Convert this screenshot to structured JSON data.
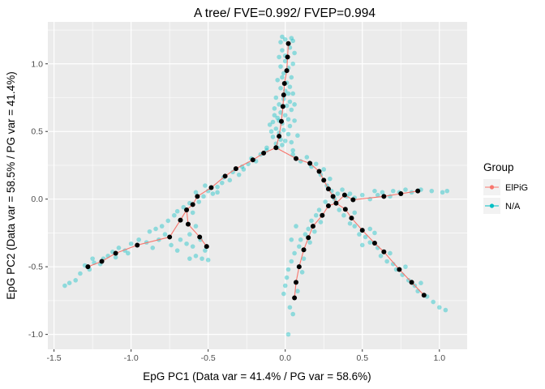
{
  "chart_data": {
    "type": "scatter",
    "title": "A tree/ FVE=0.992/ FVEP=0.994",
    "xlabel": "EpG PC1 (Data var = 41.4% / PG var = 58.6%)",
    "ylabel": "EpG PC2 (Data var = 58.5% / PG var = 41.4%)",
    "xlim": [
      -1.54,
      1.18
    ],
    "ylim": [
      -1.11,
      1.31
    ],
    "x_ticks": [
      -1.5,
      -1.0,
      -0.5,
      0.0,
      0.5,
      1.0
    ],
    "x_tick_labels": [
      "-1.5",
      "-1.0",
      "-0.5",
      "0.0",
      "0.5",
      "1.0"
    ],
    "y_ticks": [
      -1.0,
      -0.5,
      0.0,
      0.5,
      1.0
    ],
    "y_tick_labels": [
      "-1.0",
      "-0.5",
      "0.0",
      "0.5",
      "1.0"
    ],
    "grid": true,
    "legend": {
      "title": "Group",
      "position": "right",
      "entries": [
        {
          "label": "ElPiG",
          "color": "#F8766D"
        },
        {
          "label": "N/A",
          "color": "#00BFC4"
        }
      ]
    },
    "colors": {
      "panel": "#EBEBEB",
      "grid": "#FFFFFF",
      "points": "#00BFC4",
      "nodes": "#000000",
      "edges": "#F8766D"
    },
    "nodes": [
      [
        0.02,
        1.15
      ],
      [
        0.015,
        1.05
      ],
      [
        0.01,
        0.95
      ],
      [
        -0.005,
        0.855
      ],
      [
        -0.01,
        0.77
      ],
      [
        -0.015,
        0.685
      ],
      [
        -0.025,
        0.575
      ],
      [
        -0.04,
        0.465
      ],
      [
        -0.06,
        0.38
      ],
      [
        -0.14,
        0.34
      ],
      [
        -0.21,
        0.29
      ],
      [
        -0.32,
        0.225
      ],
      [
        -0.39,
        0.17
      ],
      [
        -0.48,
        0.085
      ],
      [
        -0.57,
        0.02
      ],
      [
        -0.6,
        -0.04
      ],
      [
        -0.64,
        -0.08
      ],
      [
        -0.68,
        -0.155
      ],
      [
        -0.75,
        -0.28
      ],
      [
        -0.96,
        -0.34
      ],
      [
        -1.1,
        -0.4
      ],
      [
        -1.19,
        -0.46
      ],
      [
        -1.28,
        -0.5
      ],
      [
        -0.63,
        -0.185
      ],
      [
        -0.555,
        -0.28
      ],
      [
        -0.51,
        -0.35
      ],
      [
        0.07,
        0.3
      ],
      [
        0.16,
        0.265
      ],
      [
        0.22,
        0.205
      ],
      [
        0.25,
        0.14
      ],
      [
        0.28,
        0.075
      ],
      [
        0.31,
        0.02
      ],
      [
        0.33,
        -0.03
      ],
      [
        0.385,
        0.03
      ],
      [
        0.44,
        -0.005
      ],
      [
        0.64,
        0.02
      ],
      [
        0.75,
        0.04
      ],
      [
        0.86,
        0.06
      ],
      [
        0.28,
        -0.05
      ],
      [
        0.24,
        -0.12
      ],
      [
        0.18,
        -0.2
      ],
      [
        0.15,
        -0.285
      ],
      [
        0.12,
        -0.375
      ],
      [
        0.09,
        -0.5
      ],
      [
        0.07,
        -0.615
      ],
      [
        0.06,
        -0.73
      ],
      [
        0.39,
        -0.075
      ],
      [
        0.43,
        -0.14
      ],
      [
        0.5,
        -0.23
      ],
      [
        0.58,
        -0.325
      ],
      [
        0.64,
        -0.39
      ],
      [
        0.74,
        -0.52
      ],
      [
        0.82,
        -0.615
      ],
      [
        0.9,
        -0.71
      ]
    ],
    "edges": [
      [
        0,
        1
      ],
      [
        1,
        2
      ],
      [
        2,
        3
      ],
      [
        3,
        4
      ],
      [
        4,
        5
      ],
      [
        5,
        6
      ],
      [
        6,
        7
      ],
      [
        7,
        8
      ],
      [
        8,
        9
      ],
      [
        9,
        10
      ],
      [
        10,
        11
      ],
      [
        11,
        12
      ],
      [
        12,
        13
      ],
      [
        13,
        14
      ],
      [
        14,
        15
      ],
      [
        15,
        16
      ],
      [
        16,
        17
      ],
      [
        17,
        18
      ],
      [
        18,
        19
      ],
      [
        19,
        20
      ],
      [
        20,
        21
      ],
      [
        21,
        22
      ],
      [
        16,
        23
      ],
      [
        23,
        24
      ],
      [
        24,
        25
      ],
      [
        8,
        26
      ],
      [
        26,
        27
      ],
      [
        27,
        28
      ],
      [
        28,
        29
      ],
      [
        29,
        30
      ],
      [
        30,
        31
      ],
      [
        31,
        32
      ],
      [
        32,
        33
      ],
      [
        33,
        34
      ],
      [
        34,
        35
      ],
      [
        35,
        36
      ],
      [
        36,
        37
      ],
      [
        32,
        38
      ],
      [
        38,
        39
      ],
      [
        39,
        40
      ],
      [
        40,
        41
      ],
      [
        41,
        42
      ],
      [
        42,
        43
      ],
      [
        43,
        44
      ],
      [
        44,
        45
      ],
      [
        32,
        46
      ],
      [
        46,
        47
      ],
      [
        47,
        48
      ],
      [
        48,
        49
      ],
      [
        49,
        50
      ],
      [
        50,
        51
      ],
      [
        51,
        52
      ],
      [
        52,
        53
      ]
    ],
    "points": [
      [
        -0.02,
        1.2
      ],
      [
        0.04,
        1.19
      ],
      [
        0.0,
        1.18
      ],
      [
        -0.03,
        1.16
      ],
      [
        0.05,
        1.17
      ],
      [
        0.03,
        1.12
      ],
      [
        -0.02,
        1.1
      ],
      [
        0.06,
        1.08
      ],
      [
        -0.04,
        1.05
      ],
      [
        0.0,
        1.02
      ],
      [
        0.05,
        1.0
      ],
      [
        -0.03,
        0.98
      ],
      [
        0.02,
        0.97
      ],
      [
        -0.01,
        0.93
      ],
      [
        0.04,
        0.9
      ],
      [
        -0.05,
        0.88
      ],
      [
        0.01,
        0.86
      ],
      [
        0.03,
        0.83
      ],
      [
        -0.03,
        0.82
      ],
      [
        0.0,
        0.8
      ],
      [
        0.05,
        0.78
      ],
      [
        -0.06,
        0.75
      ],
      [
        -0.01,
        0.74
      ],
      [
        0.03,
        0.72
      ],
      [
        -0.04,
        0.7
      ],
      [
        0.01,
        0.69
      ],
      [
        -0.07,
        0.67
      ],
      [
        0.04,
        0.66
      ],
      [
        -0.03,
        0.64
      ],
      [
        0.0,
        0.62
      ],
      [
        -0.05,
        0.6
      ],
      [
        0.02,
        0.59
      ],
      [
        -0.08,
        0.57
      ],
      [
        -0.02,
        0.56
      ],
      [
        0.03,
        0.54
      ],
      [
        -0.06,
        0.52
      ],
      [
        -0.01,
        0.51
      ],
      [
        -0.04,
        0.49
      ],
      [
        0.02,
        0.48
      ],
      [
        -0.08,
        0.46
      ],
      [
        -0.03,
        0.44
      ],
      [
        0.0,
        0.43
      ],
      [
        -0.06,
        0.41
      ],
      [
        -0.02,
        0.4
      ],
      [
        0.04,
        0.42
      ],
      [
        -0.09,
        0.5
      ],
      [
        0.06,
        0.58
      ],
      [
        -0.07,
        0.62
      ],
      [
        0.06,
        0.7
      ],
      [
        -0.1,
        0.55
      ],
      [
        0.08,
        0.47
      ],
      [
        -0.05,
        0.38
      ],
      [
        0.05,
        0.36
      ],
      [
        -0.12,
        0.36
      ],
      [
        0.0,
        1.06
      ],
      [
        -0.02,
        0.9
      ],
      [
        0.02,
        0.78
      ],
      [
        -0.04,
        0.58
      ],
      [
        -0.12,
        0.38
      ],
      [
        -0.16,
        0.33
      ],
      [
        -0.19,
        0.28
      ],
      [
        -0.24,
        0.26
      ],
      [
        -0.27,
        0.22
      ],
      [
        -0.3,
        0.18
      ],
      [
        -0.34,
        0.2
      ],
      [
        -0.36,
        0.14
      ],
      [
        -0.41,
        0.12
      ],
      [
        -0.44,
        0.09
      ],
      [
        -0.47,
        0.04
      ],
      [
        -0.5,
        0.06
      ],
      [
        -0.53,
        0.02
      ],
      [
        -0.56,
        -0.02
      ],
      [
        -0.58,
        0.05
      ],
      [
        -0.62,
        -0.03
      ],
      [
        -0.66,
        -0.06
      ],
      [
        -0.7,
        -0.09
      ],
      [
        -0.72,
        -0.12
      ],
      [
        -0.76,
        -0.16
      ],
      [
        -0.8,
        -0.2
      ],
      [
        -0.84,
        -0.22
      ],
      [
        -0.88,
        -0.24
      ],
      [
        -0.78,
        -0.26
      ],
      [
        -0.82,
        -0.3
      ],
      [
        -0.9,
        -0.32
      ],
      [
        -0.95,
        -0.3
      ],
      [
        -1.0,
        -0.33
      ],
      [
        -1.04,
        -0.38
      ],
      [
        -1.08,
        -0.36
      ],
      [
        -1.12,
        -0.39
      ],
      [
        -1.15,
        -0.42
      ],
      [
        -1.18,
        -0.44
      ],
      [
        -1.2,
        -0.48
      ],
      [
        -1.24,
        -0.47
      ],
      [
        -1.27,
        -0.52
      ],
      [
        -1.3,
        -0.49
      ],
      [
        -1.33,
        -0.55
      ],
      [
        -1.36,
        -0.6
      ],
      [
        -1.4,
        -0.62
      ],
      [
        -1.43,
        -0.64
      ],
      [
        -1.25,
        -0.44
      ],
      [
        -1.1,
        -0.43
      ],
      [
        -1.02,
        -0.4
      ],
      [
        -0.86,
        -0.36
      ],
      [
        -0.22,
        0.3
      ],
      [
        -0.28,
        0.24
      ],
      [
        -0.4,
        0.16
      ],
      [
        -0.52,
        0.1
      ],
      [
        -0.44,
        0.05
      ],
      [
        -0.6,
        -0.1
      ],
      [
        -0.58,
        -0.2
      ],
      [
        -0.62,
        -0.26
      ],
      [
        -0.55,
        -0.3
      ],
      [
        -0.52,
        -0.38
      ],
      [
        -0.6,
        -0.35
      ],
      [
        -0.64,
        -0.33
      ],
      [
        -0.58,
        -0.42
      ],
      [
        -0.54,
        -0.44
      ],
      [
        -0.68,
        -0.3
      ],
      [
        -0.7,
        -0.38
      ],
      [
        -0.74,
        -0.34
      ],
      [
        -0.5,
        -0.45
      ],
      [
        -0.62,
        -0.44
      ],
      [
        0.05,
        0.33
      ],
      [
        0.1,
        0.28
      ],
      [
        0.14,
        0.31
      ],
      [
        0.17,
        0.24
      ],
      [
        0.2,
        0.26
      ],
      [
        0.23,
        0.18
      ],
      [
        0.25,
        0.22
      ],
      [
        0.27,
        0.1
      ],
      [
        0.29,
        0.15
      ],
      [
        0.3,
        0.06
      ],
      [
        0.32,
        0.0
      ],
      [
        0.34,
        0.04
      ],
      [
        0.37,
        0.07
      ],
      [
        0.4,
        0.02
      ],
      [
        0.42,
        0.04
      ],
      [
        0.45,
        0.01
      ],
      [
        0.5,
        0.03
      ],
      [
        0.55,
        0.0
      ],
      [
        0.6,
        0.03
      ],
      [
        0.63,
        0.05
      ],
      [
        0.68,
        0.02
      ],
      [
        0.7,
        0.06
      ],
      [
        0.74,
        0.05
      ],
      [
        0.78,
        0.07
      ],
      [
        0.82,
        0.05
      ],
      [
        0.88,
        0.07
      ],
      [
        0.95,
        0.06
      ],
      [
        1.02,
        0.05
      ],
      [
        1.05,
        0.06
      ],
      [
        0.58,
        0.06
      ],
      [
        0.26,
        -0.02
      ],
      [
        0.22,
        -0.08
      ],
      [
        0.2,
        -0.12
      ],
      [
        0.17,
        -0.16
      ],
      [
        0.15,
        -0.22
      ],
      [
        0.13,
        -0.26
      ],
      [
        0.1,
        -0.3
      ],
      [
        0.09,
        -0.35
      ],
      [
        0.06,
        -0.4
      ],
      [
        0.04,
        -0.46
      ],
      [
        0.02,
        -0.52
      ],
      [
        0.01,
        -0.58
      ],
      [
        0.0,
        -0.64
      ],
      [
        -0.01,
        -0.7
      ],
      [
        0.03,
        -0.8
      ],
      [
        0.05,
        -0.85
      ],
      [
        0.02,
        -1.0
      ],
      [
        0.12,
        -0.44
      ],
      [
        0.16,
        -0.32
      ],
      [
        0.19,
        -0.24
      ],
      [
        0.23,
        -0.17
      ],
      [
        0.11,
        -0.54
      ],
      [
        0.08,
        -0.68
      ],
      [
        0.04,
        -0.3
      ],
      [
        0.07,
        -0.2
      ],
      [
        0.35,
        -0.08
      ],
      [
        0.38,
        -0.12
      ],
      [
        0.42,
        -0.18
      ],
      [
        0.45,
        -0.2
      ],
      [
        0.48,
        -0.26
      ],
      [
        0.52,
        -0.28
      ],
      [
        0.55,
        -0.32
      ],
      [
        0.6,
        -0.36
      ],
      [
        0.62,
        -0.42
      ],
      [
        0.66,
        -0.46
      ],
      [
        0.7,
        -0.48
      ],
      [
        0.72,
        -0.52
      ],
      [
        0.76,
        -0.56
      ],
      [
        0.8,
        -0.6
      ],
      [
        0.84,
        -0.64
      ],
      [
        0.86,
        -0.68
      ],
      [
        0.92,
        -0.72
      ],
      [
        0.96,
        -0.76
      ],
      [
        1.0,
        -0.8
      ],
      [
        1.04,
        -0.82
      ],
      [
        0.55,
        -0.22
      ],
      [
        0.68,
        -0.4
      ],
      [
        0.78,
        -0.5
      ],
      [
        0.5,
        -0.34
      ],
      [
        0.88,
        -0.62
      ],
      [
        0.45,
        -0.1
      ],
      [
        0.58,
        -0.25
      ]
    ]
  }
}
